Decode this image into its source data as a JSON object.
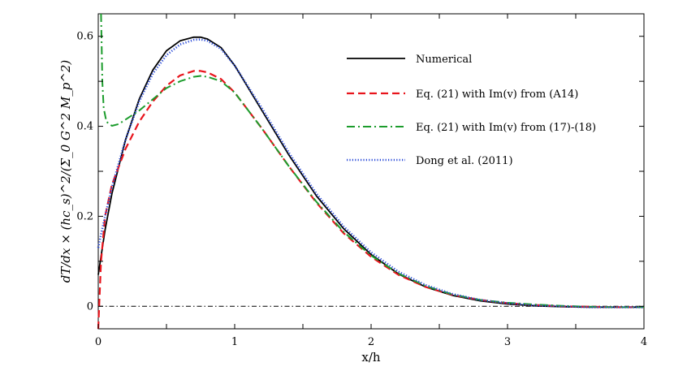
{
  "chart_data": {
    "type": "line",
    "title": "",
    "xlabel": "x/h",
    "ylabel": "dT/dx × (hc_s)^2/(Σ_0 G^2 M_p^2)",
    "xlim": [
      0,
      4
    ],
    "ylim": [
      -0.05,
      0.65
    ],
    "x_ticks": [
      0,
      1,
      2,
      3,
      4
    ],
    "x_tick_labels": [
      "0",
      "1",
      "2",
      "3",
      "4"
    ],
    "y_ticks": [
      0,
      0.2,
      0.4,
      0.6
    ],
    "y_tick_labels": [
      "0",
      "0.2",
      "0.4",
      "0.6"
    ],
    "grid": false,
    "legend_position": "top-right",
    "zero_line": {
      "y": 0,
      "color": "#000000",
      "style": "dash-dot"
    },
    "series": [
      {
        "name": "Numerical",
        "color": "#000000",
        "style": "solid",
        "x": [
          0.0,
          0.05,
          0.1,
          0.2,
          0.3,
          0.4,
          0.5,
          0.6,
          0.7,
          0.75,
          0.8,
          0.9,
          1.0,
          1.2,
          1.4,
          1.6,
          1.8,
          2.0,
          2.2,
          2.4,
          2.6,
          2.8,
          3.0,
          3.2,
          3.4,
          3.6,
          3.8,
          4.0
        ],
        "y": [
          0.07,
          0.17,
          0.25,
          0.37,
          0.46,
          0.525,
          0.568,
          0.59,
          0.598,
          0.598,
          0.594,
          0.575,
          0.535,
          0.435,
          0.335,
          0.245,
          0.172,
          0.115,
          0.072,
          0.043,
          0.024,
          0.012,
          0.005,
          0.001,
          -0.001,
          -0.002,
          -0.002,
          -0.002
        ]
      },
      {
        "name": "Eq. (21) with Im(v) from (A14)",
        "color": "#e8141c",
        "style": "dashed",
        "x": [
          0.0,
          0.02,
          0.05,
          0.1,
          0.2,
          0.3,
          0.4,
          0.5,
          0.6,
          0.7,
          0.75,
          0.8,
          0.9,
          1.0,
          1.2,
          1.4,
          1.6,
          1.8,
          2.0,
          2.2,
          2.4,
          2.6,
          2.8,
          3.0,
          3.2,
          3.4,
          3.6,
          3.8,
          4.0
        ],
        "y": [
          -0.05,
          0.1,
          0.2,
          0.27,
          0.35,
          0.41,
          0.455,
          0.49,
          0.513,
          0.523,
          0.523,
          0.52,
          0.505,
          0.475,
          0.395,
          0.31,
          0.23,
          0.162,
          0.11,
          0.07,
          0.043,
          0.025,
          0.014,
          0.007,
          0.003,
          0.0,
          -0.001,
          -0.002,
          -0.002
        ]
      },
      {
        "name": "Eq. (21) with Im(v) from (17)-(18)",
        "color": "#1c9c2c",
        "style": "dash-dot",
        "x": [
          0.02,
          0.025,
          0.03,
          0.04,
          0.06,
          0.1,
          0.15,
          0.2,
          0.3,
          0.4,
          0.5,
          0.6,
          0.7,
          0.75,
          0.8,
          0.9,
          1.0,
          1.2,
          1.4,
          1.6,
          1.8,
          2.0,
          2.2,
          2.4,
          2.6,
          2.8,
          3.0,
          3.2,
          3.4,
          3.6,
          3.8,
          4.0
        ],
        "y": [
          0.65,
          0.58,
          0.5,
          0.44,
          0.41,
          0.401,
          0.405,
          0.415,
          0.435,
          0.46,
          0.485,
          0.5,
          0.51,
          0.512,
          0.51,
          0.5,
          0.475,
          0.395,
          0.31,
          0.232,
          0.165,
          0.113,
          0.073,
          0.045,
          0.026,
          0.014,
          0.008,
          0.004,
          0.001,
          -0.001,
          -0.002,
          -0.002
        ]
      },
      {
        "name": "Dong et al. (2011)",
        "color": "#2c4cd8",
        "style": "dotted",
        "x": [
          0.0,
          0.02,
          0.05,
          0.1,
          0.2,
          0.3,
          0.4,
          0.5,
          0.6,
          0.7,
          0.75,
          0.8,
          0.9,
          1.0,
          1.2,
          1.4,
          1.6,
          1.8,
          2.0,
          2.2,
          2.4,
          2.6,
          2.8,
          3.0,
          3.2,
          3.4,
          3.6,
          3.8,
          4.0
        ],
        "y": [
          0.13,
          0.16,
          0.2,
          0.265,
          0.37,
          0.455,
          0.517,
          0.558,
          0.582,
          0.592,
          0.593,
          0.59,
          0.572,
          0.535,
          0.44,
          0.34,
          0.25,
          0.177,
          0.12,
          0.077,
          0.047,
          0.027,
          0.014,
          0.007,
          0.002,
          0.0,
          -0.002,
          -0.002,
          -0.002
        ]
      }
    ]
  }
}
